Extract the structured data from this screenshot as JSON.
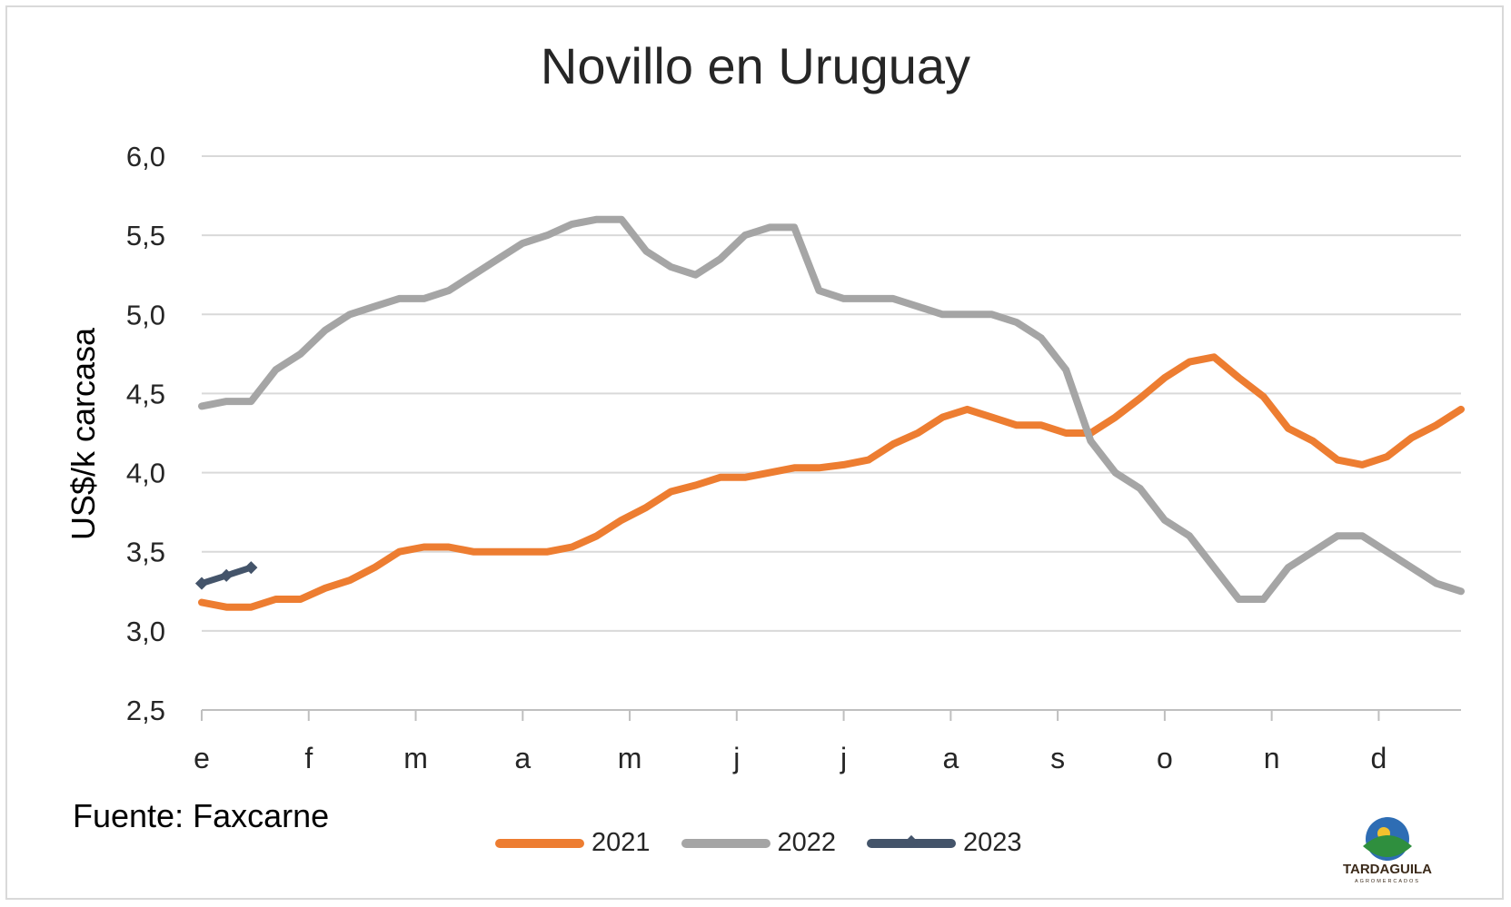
{
  "chart_data": {
    "type": "line",
    "title": "Novillo en Uruguay",
    "ylabel": "US$/k carcasa",
    "xlabel": "",
    "ylim": [
      2.5,
      6.0
    ],
    "y_ticks": [
      "6,0",
      "5,5",
      "5,0",
      "4,5",
      "4,0",
      "3,5",
      "3,0",
      "2,5"
    ],
    "y_tick_values": [
      6.0,
      5.5,
      5.0,
      4.5,
      4.0,
      3.5,
      3.0,
      2.5
    ],
    "x_tick_labels": [
      "e",
      "f",
      "m",
      "a",
      "m",
      "j",
      "j",
      "a",
      "s",
      "o",
      "n",
      "d"
    ],
    "weeks": 52,
    "grid": true,
    "legend_position": "bottom",
    "series": [
      {
        "name": "2021",
        "color": "#ED7D31",
        "values": [
          3.18,
          3.15,
          3.15,
          3.2,
          3.2,
          3.27,
          3.32,
          3.4,
          3.5,
          3.53,
          3.53,
          3.5,
          3.5,
          3.5,
          3.5,
          3.53,
          3.6,
          3.7,
          3.78,
          3.88,
          3.92,
          3.97,
          3.97,
          4.0,
          4.03,
          4.03,
          4.05,
          4.08,
          4.18,
          4.25,
          4.35,
          4.4,
          4.35,
          4.3,
          4.3,
          4.25,
          4.25,
          4.35,
          4.47,
          4.6,
          4.7,
          4.73,
          4.6,
          4.48,
          4.28,
          4.2,
          4.08,
          4.05,
          4.1,
          4.22,
          4.3,
          4.4
        ]
      },
      {
        "name": "2022",
        "color": "#A5A5A5",
        "values": [
          4.42,
          4.45,
          4.45,
          4.65,
          4.75,
          4.9,
          5.0,
          5.05,
          5.1,
          5.1,
          5.15,
          5.25,
          5.35,
          5.45,
          5.5,
          5.57,
          5.6,
          5.6,
          5.4,
          5.3,
          5.25,
          5.35,
          5.5,
          5.55,
          5.55,
          5.15,
          5.1,
          5.1,
          5.1,
          5.05,
          5.0,
          5.0,
          5.0,
          4.95,
          4.85,
          4.65,
          4.2,
          4.0,
          3.9,
          3.7,
          3.6,
          3.4,
          3.2,
          3.2,
          3.4,
          3.5,
          3.6,
          3.6,
          3.5,
          3.4,
          3.3,
          3.25
        ]
      },
      {
        "name": "2023",
        "color": "#44546A",
        "values": [
          3.3,
          3.35,
          3.4
        ]
      }
    ]
  },
  "source_text": "Fuente: Faxcarne",
  "logo": {
    "name": "TARDAGUILA",
    "subtitle": "AGROMERCADOS",
    "colors": {
      "sky": "#2E6DB4",
      "sun": "#F2C12E",
      "hill": "#2F8F3E",
      "text": "#3B2A1A"
    }
  }
}
